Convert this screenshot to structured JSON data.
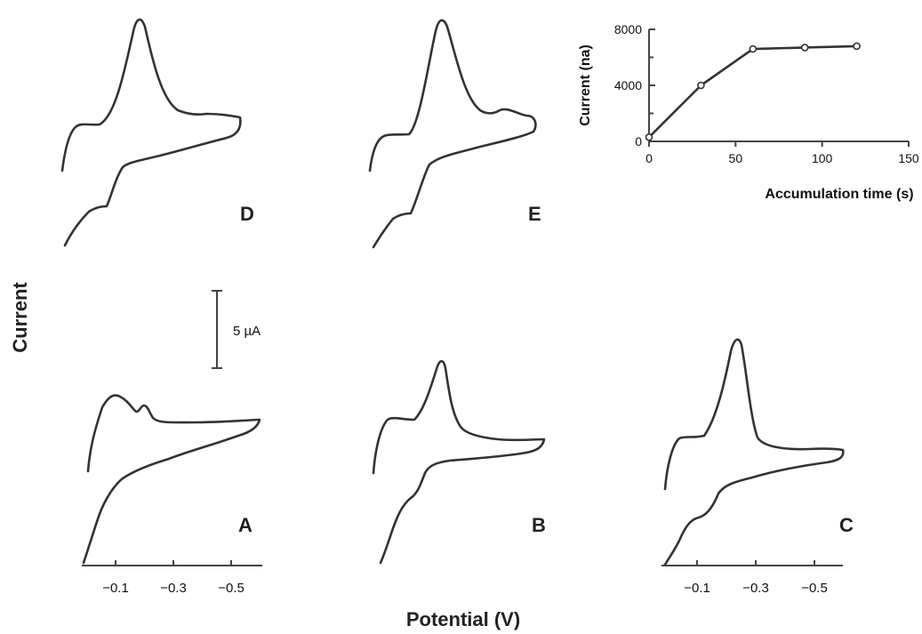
{
  "figure": {
    "ylabel": "Current",
    "xlabel": "Potential (V)",
    "scalebar_label": "5 µA",
    "x_ticks": [
      "−0.1",
      "−0.3",
      "−0.5"
    ],
    "panel_labels": [
      "A",
      "B",
      "C",
      "D",
      "E"
    ]
  },
  "chart_data": [
    {
      "type": "line",
      "title": "",
      "xlabel": "Accumulation time (s)",
      "ylabel": "Current (na)",
      "xlim": [
        0,
        150
      ],
      "ylim": [
        0,
        8000
      ],
      "x_ticks": [
        0,
        50,
        100,
        150
      ],
      "y_ticks": [
        0,
        4000,
        8000
      ],
      "series": [
        {
          "x": [
            0,
            30,
            60,
            90,
            120
          ],
          "y": [
            300,
            4000,
            6600,
            6700,
            6800
          ],
          "markers": "open-circle"
        }
      ],
      "grid": false
    },
    {
      "type": "line",
      "title": "",
      "xlabel": "Potential (V)",
      "ylabel": "Current",
      "note": "five cyclic voltammograms labeled A–E; current scale bar 5 µA",
      "x_ticks": [
        "−0.1",
        "−0.3",
        "−0.5"
      ],
      "panels": [
        {
          "label": "A",
          "peak_potential_V": -0.2,
          "relative_peak": 0.15
        },
        {
          "label": "B",
          "peak_potential_V": -0.25,
          "relative_peak": 0.45
        },
        {
          "label": "C",
          "peak_potential_V": -0.25,
          "relative_peak": 0.7
        },
        {
          "label": "D",
          "peak_potential_V": -0.25,
          "relative_peak": 1.0
        },
        {
          "label": "E",
          "peak_potential_V": -0.25,
          "relative_peak": 1.0
        }
      ]
    }
  ]
}
